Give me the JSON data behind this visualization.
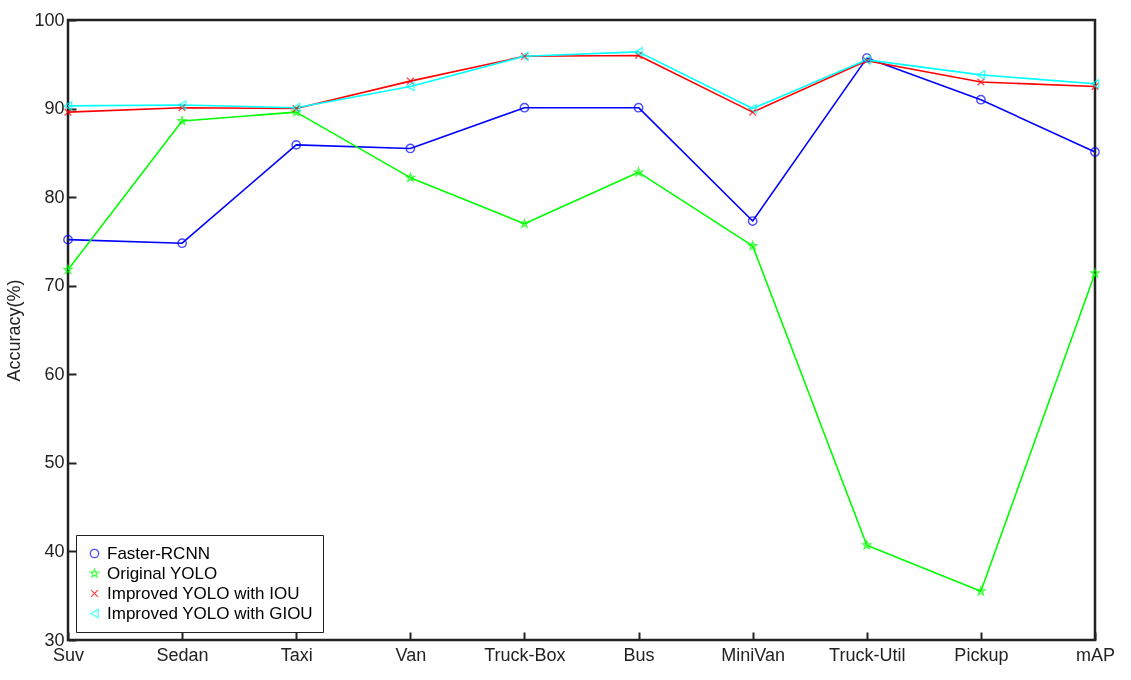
{
  "chart_data": {
    "type": "line",
    "ylabel": "Accuracy(%)",
    "categories": [
      "Suv",
      "Sedan",
      "Taxi",
      "Van",
      "Truck-Box",
      "Bus",
      "MiniVan",
      "Truck-Util",
      "Pickup",
      "mAP"
    ],
    "series": [
      {
        "name": "Faster-RCNN",
        "color": "#0000ff",
        "marker": "circle",
        "values": [
          75.2,
          74.8,
          85.9,
          85.5,
          90.1,
          90.1,
          77.3,
          95.7,
          91.0,
          85.1
        ]
      },
      {
        "name": "Original YOLO",
        "color": "#00ff00",
        "marker": "star",
        "values": [
          71.8,
          88.6,
          89.6,
          82.2,
          77.0,
          82.8,
          74.5,
          40.7,
          35.5,
          71.4
        ]
      },
      {
        "name": "Improved YOLO with IOU",
        "color": "#ff0000",
        "marker": "cross",
        "values": [
          89.6,
          90.1,
          90.0,
          93.1,
          95.9,
          96.0,
          89.6,
          95.4,
          93.0,
          92.5
        ]
      },
      {
        "name": "Improved YOLO with GIOU",
        "color": "#00ffff",
        "marker": "triangle",
        "values": [
          90.3,
          90.4,
          90.1,
          92.5,
          95.9,
          96.4,
          90.0,
          95.5,
          93.8,
          92.8
        ]
      }
    ],
    "ylim": [
      30,
      100
    ],
    "yticks": [
      30,
      40,
      50,
      60,
      70,
      80,
      90,
      100
    ],
    "grid": false,
    "legend": "bottom left",
    "line_style": "solid"
  }
}
